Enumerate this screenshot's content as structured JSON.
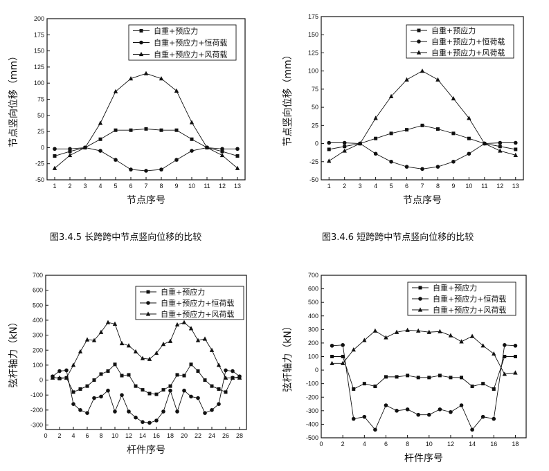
{
  "captions": {
    "fig1": "图3.4.5 长跨跨中节点竖向位移的比较",
    "fig2": "图3.4.6 短跨跨中节点竖向位移的比较"
  },
  "chart_data": [
    {
      "type": "line",
      "xlabel": "节点序号",
      "ylabel": "节点竖向位移（mm）",
      "xlim": [
        0.5,
        13.5
      ],
      "ylim": [
        -50,
        200
      ],
      "xticks": [
        1,
        2,
        3,
        4,
        5,
        6,
        7,
        8,
        9,
        10,
        11,
        12,
        13
      ],
      "yticks": [
        -50,
        -25,
        0,
        25,
        50,
        75,
        100,
        125,
        150,
        175,
        200
      ],
      "legend_position": "top-right",
      "grid": false,
      "x": [
        1,
        2,
        3,
        4,
        5,
        6,
        7,
        8,
        9,
        10,
        11,
        12,
        13
      ],
      "series": [
        {
          "name": "自重+预应力",
          "marker": "square",
          "values": [
            -13,
            -6,
            0,
            13,
            27,
            27,
            29,
            27,
            27,
            13,
            0,
            -6,
            -13
          ]
        },
        {
          "name": "自重+预应力+恒荷载",
          "marker": "circle",
          "values": [
            -2,
            -2,
            0,
            -5,
            -19,
            -34,
            -36,
            -34,
            -19,
            -5,
            0,
            -2,
            -2
          ]
        },
        {
          "name": "自重+预应力+风荷载",
          "marker": "triangle",
          "values": [
            -32,
            -12,
            0,
            38,
            87,
            107,
            115,
            107,
            88,
            39,
            0,
            -12,
            -32
          ]
        }
      ]
    },
    {
      "type": "line",
      "xlabel": "节点序号",
      "ylabel": "节点竖向位移（mm）",
      "xlim": [
        0.5,
        13.5
      ],
      "ylim": [
        -50,
        175
      ],
      "xticks": [
        1,
        2,
        3,
        4,
        5,
        6,
        7,
        8,
        9,
        10,
        11,
        12,
        13
      ],
      "yticks": [
        -50,
        -25,
        0,
        25,
        50,
        75,
        100,
        125,
        150,
        175
      ],
      "legend_position": "top-right",
      "grid": false,
      "x": [
        1,
        2,
        3,
        4,
        5,
        6,
        7,
        8,
        9,
        10,
        11,
        12,
        13
      ],
      "series": [
        {
          "name": "自重+预应力",
          "marker": "square",
          "values": [
            -8,
            -4,
            0,
            7,
            14,
            19,
            25,
            20,
            14,
            7,
            0,
            -4,
            -8
          ]
        },
        {
          "name": "自重+预应力+恒荷载",
          "marker": "circle",
          "values": [
            1,
            1,
            0,
            -14,
            -25,
            -32,
            -35,
            -32,
            -25,
            -14,
            0,
            1,
            1
          ]
        },
        {
          "name": "自重+预应力+风荷载",
          "marker": "triangle",
          "values": [
            -24,
            -10,
            0,
            35,
            65,
            88,
            100,
            88,
            62,
            35,
            0,
            -10,
            -16
          ]
        }
      ]
    },
    {
      "type": "line",
      "xlabel": "杆件序号",
      "ylabel": "弦杆轴力（kN）",
      "xlim": [
        0,
        29
      ],
      "ylim": [
        -330,
        700
      ],
      "xticks": [
        0,
        2,
        4,
        6,
        8,
        10,
        12,
        14,
        16,
        18,
        20,
        22,
        24,
        26,
        28
      ],
      "yticks": [
        -300,
        -200,
        -100,
        0,
        100,
        200,
        300,
        400,
        500,
        600,
        700
      ],
      "legend_position": "top-right",
      "grid": false,
      "x": [
        1,
        2,
        3,
        4,
        5,
        6,
        7,
        8,
        9,
        10,
        11,
        12,
        13,
        14,
        15,
        16,
        17,
        18,
        19,
        20,
        21,
        22,
        23,
        24,
        25,
        26,
        27,
        28
      ],
      "series": [
        {
          "name": "自重+预应力",
          "marker": "square",
          "values": [
            20,
            10,
            15,
            -80,
            -60,
            -40,
            0,
            40,
            60,
            105,
            30,
            35,
            -40,
            -65,
            -90,
            -95,
            -65,
            -40,
            35,
            30,
            105,
            60,
            0,
            -40,
            -60,
            -80,
            15,
            20
          ]
        },
        {
          "name": "自重+预应力+恒荷载",
          "marker": "circle",
          "values": [
            25,
            60,
            65,
            -160,
            -200,
            -220,
            -120,
            -110,
            -70,
            -210,
            -100,
            -210,
            -250,
            -280,
            -285,
            -270,
            -210,
            -70,
            -210,
            -70,
            -110,
            -120,
            -220,
            -200,
            -160,
            65,
            60,
            25
          ]
        },
        {
          "name": "自重+预应力+风荷载",
          "marker": "triangle",
          "values": [
            15,
            15,
            15,
            100,
            190,
            270,
            265,
            320,
            385,
            375,
            245,
            230,
            190,
            145,
            140,
            180,
            240,
            260,
            370,
            385,
            345,
            265,
            275,
            200,
            100,
            15,
            15,
            15
          ]
        }
      ]
    },
    {
      "type": "line",
      "xlabel": "杆件序号",
      "ylabel": "弦杆轴力（kN）",
      "xlim": [
        0,
        19
      ],
      "ylim": [
        -500,
        700
      ],
      "xticks": [
        0,
        2,
        4,
        6,
        8,
        10,
        12,
        14,
        16,
        18
      ],
      "yticks": [
        -500,
        -400,
        -300,
        -200,
        -100,
        0,
        100,
        200,
        300,
        400,
        500,
        600,
        700
      ],
      "legend_position": "top-right",
      "grid": false,
      "x": [
        1,
        2,
        3,
        4,
        5,
        6,
        7,
        8,
        9,
        10,
        11,
        12,
        13,
        14,
        15,
        16,
        17,
        18
      ],
      "series": [
        {
          "name": "自重+预应力",
          "marker": "square",
          "values": [
            100,
            100,
            -140,
            -100,
            -120,
            -50,
            -50,
            -40,
            -55,
            -55,
            -40,
            -55,
            -55,
            -120,
            -100,
            -140,
            100,
            100
          ]
        },
        {
          "name": "自重+预应力+恒荷载",
          "marker": "circle",
          "values": [
            180,
            185,
            -360,
            -345,
            -440,
            -260,
            -300,
            -290,
            -330,
            -330,
            -290,
            -310,
            -260,
            -440,
            -345,
            -360,
            185,
            180
          ]
        },
        {
          "name": "自重+预应力+风荷载",
          "marker": "triangle",
          "values": [
            50,
            50,
            150,
            220,
            290,
            240,
            280,
            295,
            290,
            280,
            285,
            255,
            210,
            250,
            180,
            120,
            -30,
            -20
          ]
        }
      ]
    }
  ]
}
